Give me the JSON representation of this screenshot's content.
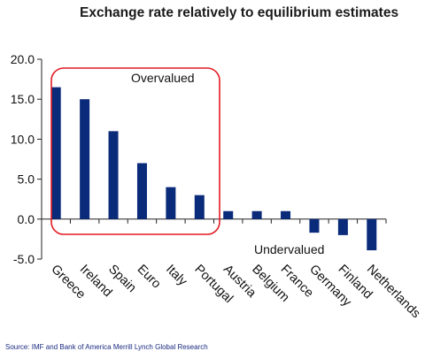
{
  "chart_data": {
    "type": "bar",
    "title": "Exchange rate relatively to equilibrium estimates",
    "categories": [
      "Greece",
      "Ireland",
      "Spain",
      "Euro",
      "Italy",
      "Portugal",
      "Austria",
      "Belgium",
      "France",
      "Germany",
      "Finland",
      "Netherlands"
    ],
    "values": [
      16.5,
      15.0,
      11.0,
      7.0,
      4.0,
      3.0,
      1.0,
      1.0,
      1.0,
      -1.7,
      -2.0,
      -3.9
    ],
    "ylim": [
      -5.0,
      20.0
    ],
    "yticks": [
      "20.0",
      "15.0",
      "10.0",
      "5.0",
      "0.0",
      "-5.0"
    ],
    "bar_color": "#0a2a7a",
    "highlight_color": "#e21b23",
    "annotations": {
      "overvalued": "Overvalued",
      "undervalued": "Undervalued"
    },
    "source": "Source: IMF and Bank of America Merrill Lynch Global Research"
  }
}
